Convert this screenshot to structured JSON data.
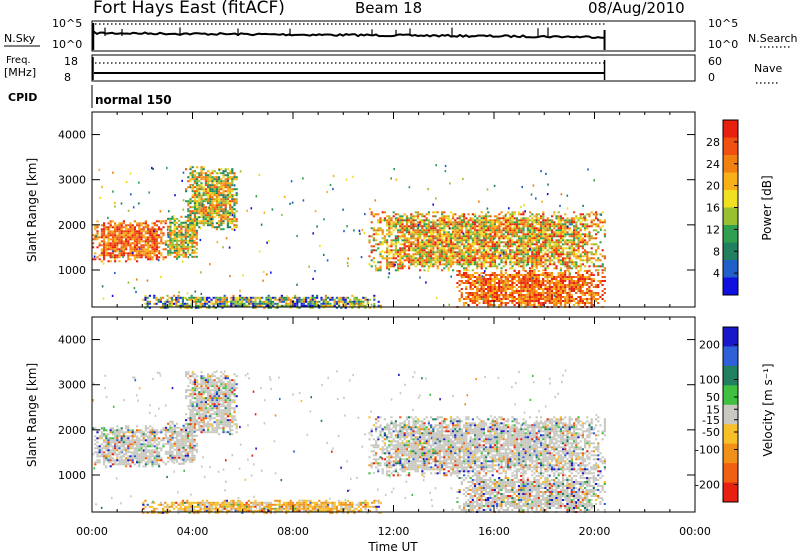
{
  "header": {
    "station": "Fort Hays East (fitACF)",
    "beam": "Beam 18",
    "date": "08/Aug/2010"
  },
  "top_panels": {
    "nsky_label": "N.Sky",
    "nsky_ticks": [
      "10^5",
      "10^0"
    ],
    "nsearch_label": "N.Search",
    "nsearch_ticks": [
      "10^5",
      "10^0"
    ],
    "freq_label_1": "Freq.",
    "freq_label_2": "[MHz]",
    "freq_ticks": [
      "18",
      "8"
    ],
    "nave_label": "Nave",
    "nave_ticks": [
      "60",
      "0"
    ],
    "cpid_label": "CPID",
    "cpid_value": "normal 150"
  },
  "colors": {
    "power_scale": [
      "#1010e0",
      "#2060c8",
      "#208060",
      "#30a050",
      "#98c030",
      "#f0e020",
      "#f8b018",
      "#f08010",
      "#f05010",
      "#e82010"
    ],
    "velocity_scale": [
      "#1818c8",
      "#3060d8",
      "#208060",
      "#40c040",
      "#c8c8c0",
      "#f8c028",
      "#f09018",
      "#f06010",
      "#e82010"
    ]
  },
  "chart_data": [
    {
      "type": "heatmap",
      "title": "",
      "xlabel": "",
      "ylabel": "Slant Range [km]",
      "x_ticks": [
        "00:00",
        "04:00",
        "08:00",
        "12:00",
        "16:00",
        "20:00",
        "00:00"
      ],
      "y_ticks": [
        "1000",
        "2000",
        "3000",
        "4000"
      ],
      "xlim_hours": [
        0,
        24
      ],
      "ylim_km": [
        180,
        4500
      ],
      "colorbar_label": "Power [dB]",
      "colorbar_ticks": [
        "4",
        "8",
        "12",
        "16",
        "20",
        "24",
        "28"
      ],
      "colorbar_range": [
        0,
        32
      ],
      "data_end_hour": 20.4,
      "regions": [
        {
          "name": "early-echo",
          "t": [
            0.0,
            2.9
          ],
          "r": [
            1200,
            2100
          ],
          "level": "high"
        },
        {
          "name": "pre-dawn-patch",
          "t": [
            2.9,
            4.2
          ],
          "r": [
            1250,
            2200
          ],
          "level": "mid"
        },
        {
          "name": "morning-rise",
          "t": [
            3.7,
            5.8
          ],
          "r": [
            1900,
            3300
          ],
          "level": "mid"
        },
        {
          "name": "ground-scatter-day",
          "t": [
            2.0,
            11.5
          ],
          "r": [
            180,
            450
          ],
          "level": "low"
        },
        {
          "name": "afternoon-band",
          "t": [
            11.0,
            20.4
          ],
          "r": [
            1000,
            2300
          ],
          "level": "mid-high"
        },
        {
          "name": "evening-near",
          "t": [
            14.5,
            20.4
          ],
          "r": [
            200,
            1000
          ],
          "level": "high"
        }
      ]
    },
    {
      "type": "heatmap",
      "title": "",
      "xlabel": "Time UT",
      "ylabel": "Slant Range [km]",
      "x_ticks": [
        "00:00",
        "04:00",
        "08:00",
        "12:00",
        "16:00",
        "20:00",
        "00:00"
      ],
      "y_ticks": [
        "1000",
        "2000",
        "3000",
        "4000"
      ],
      "xlim_hours": [
        0,
        24
      ],
      "ylim_km": [
        180,
        4500
      ],
      "colorbar_label": "Velocity [m s⁻¹]",
      "colorbar_ticks": [
        "200",
        "100",
        "50",
        "15",
        "-15",
        "-50",
        "-100",
        "-200"
      ],
      "colorbar_range": [
        -250,
        250
      ],
      "data_end_hour": 20.4,
      "regions": [
        {
          "name": "early-echo",
          "t": [
            0.0,
            2.9
          ],
          "r": [
            1200,
            2100
          ],
          "level": "near-zero"
        },
        {
          "name": "pre-dawn-patch",
          "t": [
            2.9,
            4.2
          ],
          "r": [
            1250,
            2200
          ],
          "level": "near-zero"
        },
        {
          "name": "morning-rise",
          "t": [
            3.7,
            5.8
          ],
          "r": [
            1900,
            3300
          ],
          "level": "near-zero"
        },
        {
          "name": "ground-scatter-day",
          "t": [
            2.0,
            11.5
          ],
          "r": [
            180,
            450
          ],
          "level": "negative"
        },
        {
          "name": "afternoon-band",
          "t": [
            11.0,
            20.4
          ],
          "r": [
            1000,
            2300
          ],
          "level": "near-zero"
        },
        {
          "name": "evening-near",
          "t": [
            14.5,
            20.4
          ],
          "r": [
            200,
            1000
          ],
          "level": "near-zero"
        }
      ]
    }
  ]
}
